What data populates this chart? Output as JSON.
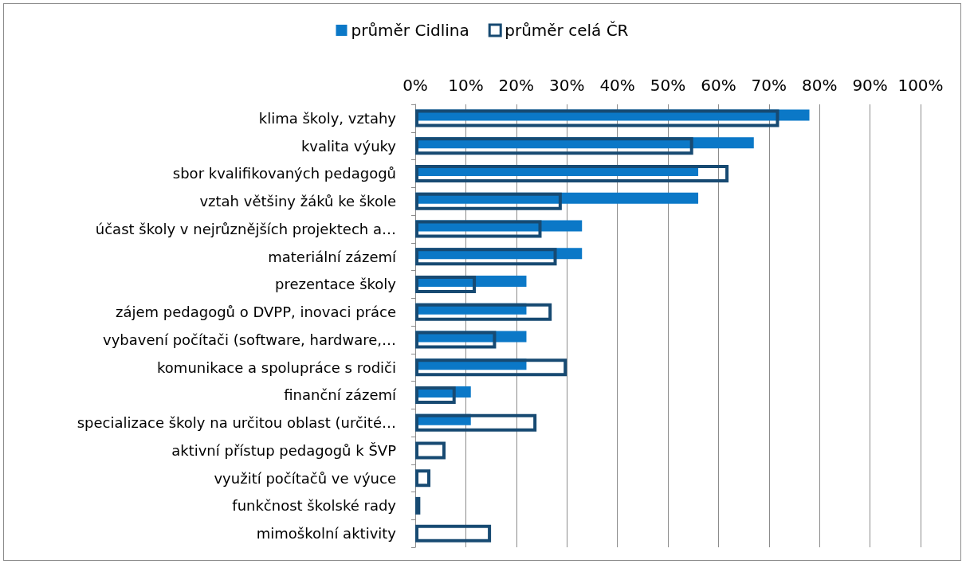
{
  "chart_data": {
    "type": "bar",
    "orientation": "horizontal",
    "legend": "top",
    "grid": "x",
    "categories": [
      "klima školy, vztahy",
      "kvalita výuky",
      "sbor kvalifikovaných pedagogů",
      "vztah většiny žáků ke škole",
      "účast školy v nejrůznějších projektech a…",
      "materiální zázemí",
      "prezentace školy",
      "zájem pedagogů o DVPP, inovaci práce",
      "vybavení počítači (software, hardware,…",
      "komunikace a spolupráce s rodiči",
      "finanční zázemí",
      "specializace školy na určitou oblast (určité…",
      "aktivní přístup pedagogů k ŠVP",
      "využití počítačů ve výuce",
      "funkčnost školské rady",
      "mimoškolní aktivity"
    ],
    "series": [
      {
        "name": "průměr Cidlina",
        "color": "#0b78c7",
        "values": [
          78,
          67,
          56,
          56,
          33,
          33,
          22,
          22,
          22,
          22,
          11,
          11,
          0,
          0,
          0,
          0
        ]
      },
      {
        "name": "průměr celá ČR",
        "color": "#174a72",
        "values": [
          72,
          55,
          62,
          29,
          25,
          28,
          12,
          27,
          16,
          30,
          8,
          24,
          6,
          3,
          1,
          15
        ]
      }
    ],
    "xlim": [
      0,
      100
    ],
    "xticks": [
      {
        "value": 0,
        "label": "0%"
      },
      {
        "value": 10,
        "label": "10%"
      },
      {
        "value": 20,
        "label": "20%"
      },
      {
        "value": 30,
        "label": "30%"
      },
      {
        "value": 40,
        "label": "40%"
      },
      {
        "value": 50,
        "label": "50%"
      },
      {
        "value": 60,
        "label": "60%"
      },
      {
        "value": 70,
        "label": "70%"
      },
      {
        "value": 80,
        "label": "80%"
      },
      {
        "value": 90,
        "label": "90%"
      },
      {
        "value": 100,
        "label": "100%"
      }
    ]
  }
}
